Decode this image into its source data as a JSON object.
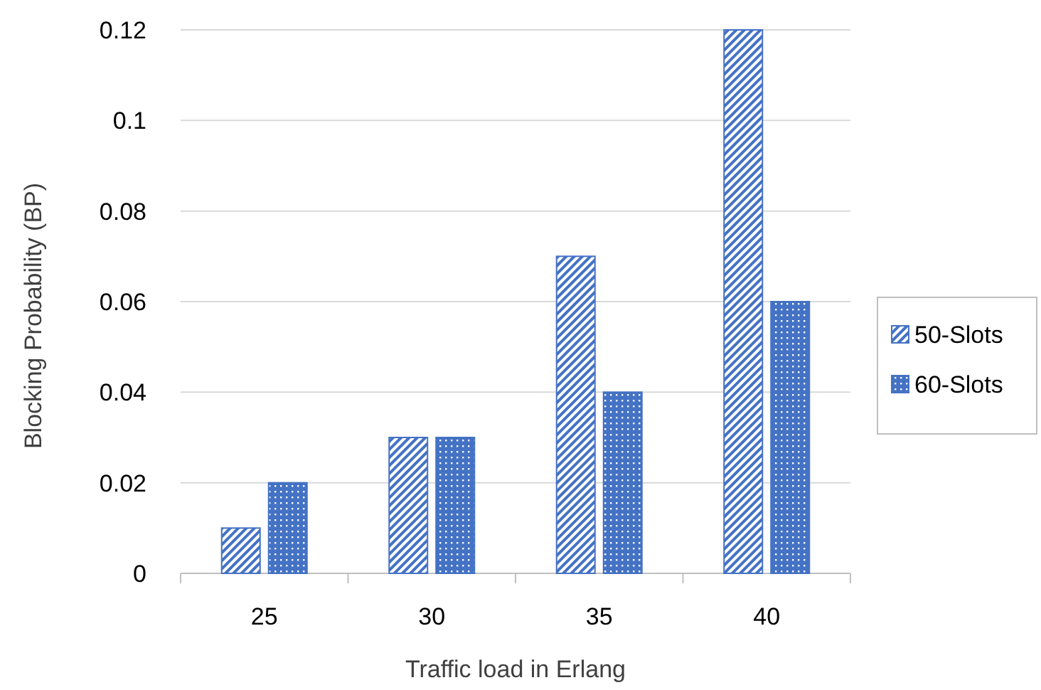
{
  "chart_data": {
    "type": "bar",
    "xlabel": "Traffic load in  Erlang",
    "ylabel": "Blocking Probability (BP)",
    "categories": [
      "25",
      "30",
      "35",
      "40"
    ],
    "series": [
      {
        "name": "50-Slots",
        "color": "#4472c4",
        "values": [
          0.01,
          0.03,
          0.07,
          0.12
        ]
      },
      {
        "name": "60-Slots",
        "color": "#4472c4",
        "values": [
          0.02,
          0.03,
          0.04,
          0.06
        ]
      }
    ],
    "ylim": [
      0,
      0.12
    ],
    "yticks": [
      {
        "value": 0,
        "label": "0"
      },
      {
        "value": 0.02,
        "label": "0.02"
      },
      {
        "value": 0.04,
        "label": "0.04"
      },
      {
        "value": 0.06,
        "label": "0.06"
      },
      {
        "value": 0.08,
        "label": "0.08"
      },
      {
        "value": 0.1,
        "label": "0.1"
      },
      {
        "value": 0.12,
        "label": "0.12"
      }
    ],
    "grid": "y",
    "legend": "right"
  }
}
